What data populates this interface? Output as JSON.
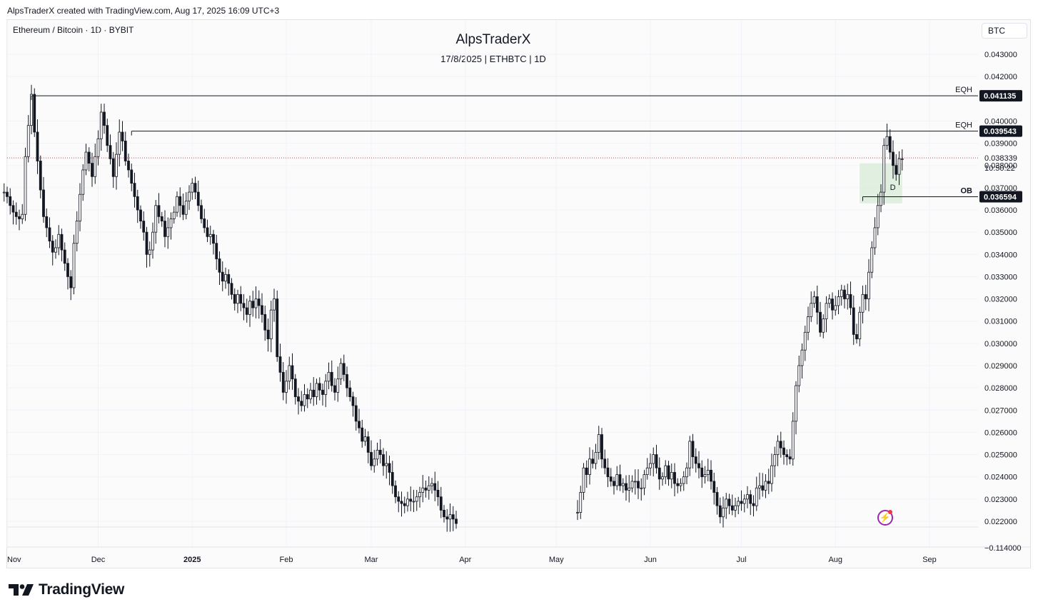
{
  "header": {
    "credit": "AlpsTraderX created with TradingView.com, Aug 17, 2025 16:09 UTC+3"
  },
  "chart_header": {
    "symbol_line": "Ethereum / Bitcoin · 1D · BYBIT",
    "title": "AlpsTraderX",
    "subtitle": "17/8/2025 | ETHBTC | 1D",
    "currency": "BTC"
  },
  "brand": {
    "name": "TradingView"
  },
  "colors": {
    "up": "#131722",
    "down": "#131722",
    "ob_zone": "#cfe8cf",
    "price_line": "#f23645",
    "accent": "#9c27b0"
  },
  "chart_data": {
    "type": "candlestick",
    "symbol": "ETHBTC",
    "interval": "1D",
    "x_ticks": [
      "Nov",
      "Dec",
      "2025",
      "Feb",
      "Mar",
      "Apr",
      "May",
      "Jun",
      "Jul",
      "Aug",
      "Sep"
    ],
    "y_ticks": [
      "0.043000",
      "0.042000",
      "0.040000",
      "0.039000",
      "0.038000",
      "0.037000",
      "0.036000",
      "0.035000",
      "0.034000",
      "0.033000",
      "0.032000",
      "0.031000",
      "0.030000",
      "0.029000",
      "0.028000",
      "0.027000",
      "0.026000",
      "0.025000",
      "0.024000",
      "0.023000",
      "0.022000"
    ],
    "y_ticks_bottom": "−0.114000",
    "ylim": [
      0.0219,
      0.0436
    ],
    "current_price": {
      "value": "0.038339",
      "countdown": "10:50:22"
    },
    "levels": [
      {
        "label": "EQH",
        "value": "0.041135",
        "from_date": "2024-11-09"
      },
      {
        "label": "EQH",
        "value": "0.039543",
        "from_date": "2024-12-12"
      },
      {
        "label": "OB",
        "value": "0.036594",
        "from_date": "2025-08-10"
      }
    ],
    "zone": {
      "label": "D",
      "from_date": "2025-08-09",
      "to_date": "2025-08-23",
      "top": 0.0381,
      "bottom": 0.0363
    },
    "segments": [
      {
        "start": "2024-10-31",
        "closes": [
          0.0368,
          0.0366,
          0.0362,
          0.0359,
          0.0357,
          0.0356,
          0.0358,
          0.0384,
          0.0398,
          0.0412,
          0.0395,
          0.0382,
          0.0369,
          0.0357,
          0.0352,
          0.0346,
          0.0341,
          0.0343,
          0.0349,
          0.0342,
          0.0336,
          0.033,
          0.0325,
          0.0345,
          0.0355,
          0.0367,
          0.0378,
          0.0386,
          0.0381,
          0.0375,
          0.0384,
          0.0392,
          0.0404,
          0.0398,
          0.0389,
          0.0383,
          0.0375,
          0.0385,
          0.0395,
          0.0391,
          0.0382,
          0.0378,
          0.0372,
          0.0366,
          0.036,
          0.0355,
          0.035,
          0.034,
          0.0342,
          0.035,
          0.0362,
          0.0357,
          0.0355,
          0.0348,
          0.0352,
          0.0356,
          0.0359,
          0.0366,
          0.0362,
          0.0358,
          0.0364,
          0.0368,
          0.0372,
          0.0368,
          0.0362,
          0.0356,
          0.0352,
          0.0348,
          0.0349,
          0.0345,
          0.0338,
          0.0332,
          0.0328,
          0.0331,
          0.0327,
          0.0322,
          0.0318,
          0.0322,
          0.0318,
          0.0316,
          0.0313,
          0.0319,
          0.0316,
          0.032,
          0.0317,
          0.0313,
          0.0306,
          0.0302,
          0.0315,
          0.032,
          0.0294,
          0.0287,
          0.0278,
          0.0283,
          0.029,
          0.0284,
          0.0276,
          0.0274,
          0.0272,
          0.0277,
          0.0275,
          0.0279,
          0.0276,
          0.0282,
          0.0279,
          0.0277,
          0.0283,
          0.0287,
          0.0281,
          0.0278,
          0.0284,
          0.0291,
          0.0286,
          0.028,
          0.0276,
          0.0272,
          0.0265,
          0.0262,
          0.0256,
          0.0258,
          0.0251,
          0.0245,
          0.0248,
          0.0252,
          0.025,
          0.0245,
          0.0246,
          0.0242,
          0.0236,
          0.0231,
          0.0229,
          0.0228,
          0.0227,
          0.023,
          0.0229,
          0.0229,
          0.0231,
          0.0233,
          0.0235,
          0.0234,
          0.0236,
          0.0237,
          0.0234,
          0.0231,
          0.0225,
          0.0222,
          0.0221,
          0.0223,
          0.0221,
          0.0219
        ]
      },
      {
        "start": "2025-05-08",
        "closes": [
          0.0224,
          0.0233,
          0.0244,
          0.0241,
          0.0248,
          0.0246,
          0.0251,
          0.0259,
          0.0248,
          0.0244,
          0.024,
          0.0238,
          0.0236,
          0.0241,
          0.0236,
          0.0237,
          0.0234,
          0.0235,
          0.0238,
          0.0238,
          0.0235,
          0.0235,
          0.0241,
          0.0244,
          0.0246,
          0.025,
          0.0244,
          0.0239,
          0.024,
          0.0245,
          0.0239,
          0.0242,
          0.0237,
          0.0236,
          0.0237,
          0.024,
          0.0244,
          0.0256,
          0.0249,
          0.0246,
          0.0244,
          0.024,
          0.0241,
          0.0243,
          0.0238,
          0.0233,
          0.0227,
          0.0222,
          0.0226,
          0.023,
          0.0227,
          0.0225,
          0.0227,
          0.0229,
          0.0228,
          0.023,
          0.0232,
          0.0228,
          0.0227,
          0.0235,
          0.0236,
          0.0234,
          0.0238,
          0.0237,
          0.0245,
          0.025,
          0.0256,
          0.0253,
          0.025,
          0.0249,
          0.0248,
          0.0265,
          0.0281,
          0.029,
          0.0297,
          0.0305,
          0.0312,
          0.0318,
          0.0321,
          0.0314,
          0.0305,
          0.0311,
          0.0318,
          0.032,
          0.0315,
          0.0317,
          0.0321,
          0.0324,
          0.032,
          0.0322,
          0.0316,
          0.0304,
          0.0302,
          0.0314,
          0.0322,
          0.032,
          0.0332,
          0.0343,
          0.0352,
          0.0362,
          0.0368,
          0.0389,
          0.0393,
          0.0386,
          0.038,
          0.0376,
          0.0383,
          0.0383
        ]
      }
    ]
  }
}
